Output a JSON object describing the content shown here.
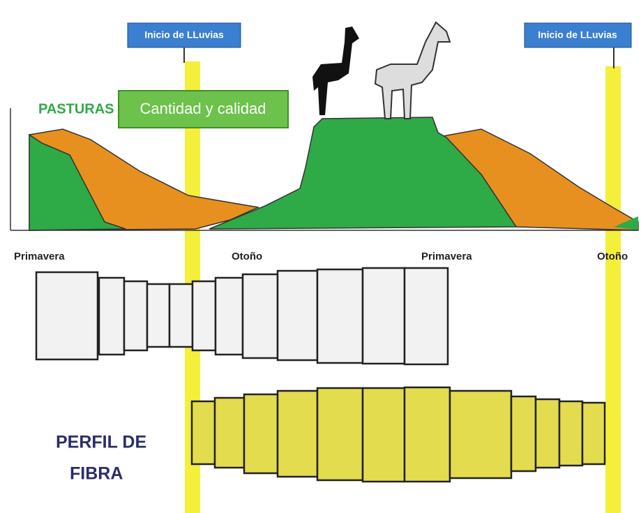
{
  "labels": {
    "rain_start": [
      "Inicio de LLuvias",
      "Inicio de LLuvias"
    ],
    "pastures": "PASTURAS",
    "pasture_box": "Cantidad y calidad",
    "seasons": [
      "Primavera",
      "Otoño",
      "Primavera",
      "Otoño"
    ],
    "fiber_profile": [
      "PERFIL DE",
      "FIBRA"
    ]
  }
}
